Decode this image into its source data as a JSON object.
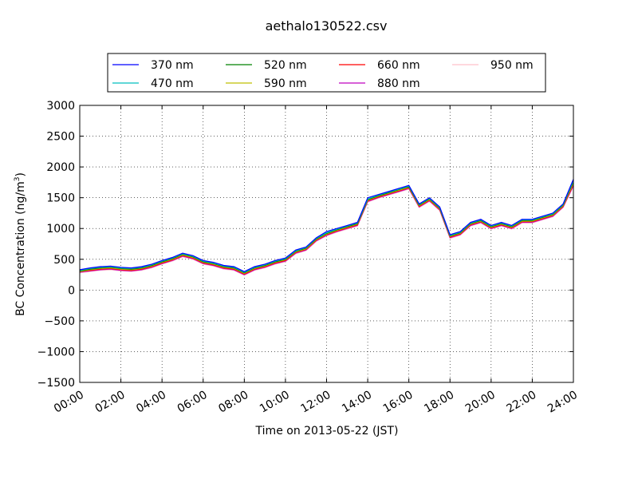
{
  "chart_data": {
    "type": "line",
    "title": "aethalo130522.csv",
    "xlabel": "Time on 2013-05-22 (JST)",
    "ylabel": "BC Concentration (ng/m",
    "ylabel_sup": "3",
    "ylabel_end": ")",
    "x_unit": "hour",
    "xlim": [
      0,
      24
    ],
    "ylim": [
      -1500,
      3000
    ],
    "x_ticks": [
      0,
      2,
      4,
      6,
      8,
      10,
      12,
      14,
      16,
      18,
      20,
      22,
      24
    ],
    "x_tick_labels": [
      "00:00",
      "02:00",
      "04:00",
      "06:00",
      "08:00",
      "10:00",
      "12:00",
      "14:00",
      "16:00",
      "18:00",
      "20:00",
      "22:00",
      "24:00"
    ],
    "y_ticks": [
      -1500,
      -1000,
      -500,
      0,
      500,
      1000,
      1500,
      2000,
      2500,
      3000
    ],
    "y_tick_labels": [
      "−1500",
      "−1000",
      "−500",
      "0",
      "500",
      "1000",
      "1500",
      "2000",
      "2500",
      "3000"
    ],
    "grid": true,
    "legend_position": "top",
    "x": [
      0.0,
      0.5,
      1.0,
      1.5,
      2.0,
      2.5,
      3.0,
      3.5,
      4.0,
      4.5,
      5.0,
      5.5,
      6.0,
      6.5,
      7.0,
      7.5,
      8.0,
      8.5,
      9.0,
      9.5,
      10.0,
      10.5,
      11.0,
      11.5,
      12.0,
      12.5,
      13.0,
      13.5,
      14.0,
      14.5,
      15.0,
      15.5,
      16.0,
      16.5,
      17.0,
      17.5,
      18.0,
      18.5,
      19.0,
      19.5,
      20.0,
      20.5,
      21.0,
      21.5,
      22.0,
      22.5,
      23.0,
      23.5,
      24.0
    ],
    "series": [
      {
        "name": "370 nm",
        "color": "#0000ff",
        "values": [
          330,
          360,
          380,
          390,
          370,
          360,
          380,
          420,
          480,
          530,
          600,
          560,
          480,
          450,
          400,
          380,
          300,
          380,
          420,
          480,
          520,
          650,
          700,
          850,
          950,
          1000,
          1050,
          1100,
          1500,
          1550,
          1600,
          1650,
          1700,
          1400,
          1500,
          1350,
          900,
          950,
          1100,
          1150,
          1050,
          1100,
          1050,
          1150,
          1150,
          1200,
          1250,
          1400,
          1800
        ]
      },
      {
        "name": "470 nm",
        "color": "#00bfbf",
        "values": [
          320,
          350,
          370,
          380,
          360,
          350,
          370,
          410,
          470,
          520,
          590,
          550,
          470,
          440,
          390,
          370,
          290,
          370,
          410,
          470,
          510,
          640,
          690,
          840,
          930,
          990,
          1040,
          1090,
          1480,
          1540,
          1590,
          1640,
          1690,
          1390,
          1490,
          1340,
          890,
          940,
          1090,
          1140,
          1040,
          1090,
          1040,
          1140,
          1140,
          1190,
          1240,
          1390,
          1780
        ]
      },
      {
        "name": "520 nm",
        "color": "#008000",
        "values": [
          310,
          340,
          360,
          370,
          350,
          340,
          360,
          400,
          460,
          510,
          580,
          540,
          460,
          430,
          380,
          360,
          280,
          360,
          400,
          460,
          500,
          630,
          680,
          830,
          920,
          980,
          1030,
          1080,
          1470,
          1530,
          1580,
          1630,
          1680,
          1380,
          1480,
          1330,
          880,
          930,
          1080,
          1130,
          1030,
          1080,
          1030,
          1130,
          1130,
          1180,
          1230,
          1380,
          1760
        ]
      },
      {
        "name": "590 nm",
        "color": "#bfbf00",
        "values": [
          300,
          330,
          350,
          360,
          340,
          330,
          350,
          390,
          450,
          500,
          570,
          530,
          450,
          420,
          370,
          350,
          270,
          350,
          390,
          450,
          490,
          620,
          670,
          820,
          910,
          970,
          1020,
          1070,
          1460,
          1520,
          1570,
          1620,
          1670,
          1370,
          1470,
          1320,
          870,
          920,
          1070,
          1120,
          1020,
          1070,
          1020,
          1120,
          1120,
          1170,
          1220,
          1370,
          1740
        ]
      },
      {
        "name": "660 nm",
        "color": "#ff0000",
        "values": [
          300,
          320,
          340,
          350,
          330,
          320,
          340,
          380,
          440,
          490,
          560,
          520,
          440,
          410,
          360,
          340,
          260,
          340,
          380,
          440,
          480,
          610,
          660,
          810,
          900,
          960,
          1010,
          1060,
          1450,
          1510,
          1560,
          1610,
          1660,
          1360,
          1460,
          1310,
          860,
          910,
          1060,
          1110,
          1010,
          1060,
          1010,
          1110,
          1110,
          1160,
          1210,
          1360,
          1720
        ]
      },
      {
        "name": "880 nm",
        "color": "#bf00bf",
        "values": [
          290,
          310,
          330,
          340,
          320,
          310,
          330,
          370,
          430,
          480,
          550,
          510,
          430,
          400,
          350,
          330,
          250,
          330,
          370,
          430,
          470,
          600,
          650,
          800,
          890,
          950,
          1000,
          1050,
          1440,
          1500,
          1550,
          1600,
          1650,
          1350,
          1450,
          1300,
          850,
          900,
          1050,
          1100,
          1000,
          1050,
          1000,
          1100,
          1100,
          1150,
          1200,
          1350,
          1700
        ]
      },
      {
        "name": "950 nm",
        "color": "#ffc0cb",
        "values": [
          280,
          300,
          320,
          330,
          310,
          300,
          320,
          360,
          420,
          470,
          540,
          500,
          420,
          390,
          340,
          320,
          240,
          320,
          360,
          420,
          460,
          590,
          640,
          790,
          880,
          940,
          990,
          1040,
          1430,
          1490,
          1540,
          1590,
          1640,
          1340,
          1440,
          1290,
          840,
          890,
          1040,
          1090,
          990,
          1040,
          990,
          1090,
          1090,
          1140,
          1190,
          1340,
          1680
        ]
      }
    ]
  }
}
